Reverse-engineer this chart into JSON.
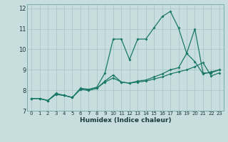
{
  "title": "",
  "xlabel": "Humidex (Indice chaleur)",
  "background_color": "#c8dede",
  "grid_color": "#a8c8c8",
  "line_color": "#1a7868",
  "xlim": [
    -0.5,
    23.5
  ],
  "ylim": [
    7,
    12.2
  ],
  "yticks": [
    7,
    8,
    9,
    10,
    11,
    12
  ],
  "xticks": [
    0,
    1,
    2,
    3,
    4,
    5,
    6,
    7,
    8,
    9,
    10,
    11,
    12,
    13,
    14,
    15,
    16,
    17,
    18,
    19,
    20,
    21,
    22,
    23
  ],
  "lines": [
    {
      "x": [
        0,
        1,
        2,
        3,
        4,
        5,
        6,
        7,
        8,
        9,
        10,
        11,
        12,
        13,
        14,
        15,
        16,
        17,
        18,
        19,
        20,
        21,
        22,
        23
      ],
      "y": [
        7.6,
        7.6,
        7.5,
        7.85,
        7.75,
        7.65,
        8.1,
        8.05,
        8.15,
        8.85,
        10.5,
        10.5,
        9.5,
        10.5,
        10.5,
        11.05,
        11.6,
        11.85,
        11.05,
        9.8,
        9.4,
        8.8,
        8.9,
        9.0
      ]
    },
    {
      "x": [
        0,
        1,
        2,
        3,
        4,
        5,
        6,
        7,
        8,
        9,
        10,
        11,
        12,
        13,
        14,
        15,
        16,
        17,
        18,
        19,
        20,
        21,
        22,
        23
      ],
      "y": [
        7.6,
        7.6,
        7.5,
        7.8,
        7.75,
        7.65,
        8.05,
        8.0,
        8.1,
        8.45,
        8.75,
        8.4,
        8.35,
        8.45,
        8.5,
        8.65,
        8.8,
        9.0,
        9.1,
        9.8,
        11.0,
        8.85,
        8.85,
        9.0
      ]
    },
    {
      "x": [
        0,
        1,
        2,
        3,
        4,
        5,
        6,
        7,
        8,
        9,
        10,
        11,
        12,
        13,
        14,
        15,
        16,
        17,
        18,
        19,
        20,
        21,
        22,
        23
      ],
      "y": [
        7.6,
        7.6,
        7.5,
        7.8,
        7.75,
        7.65,
        8.05,
        8.0,
        8.1,
        8.4,
        8.6,
        8.4,
        8.35,
        8.4,
        8.45,
        8.55,
        8.65,
        8.8,
        8.9,
        9.0,
        9.15,
        9.35,
        8.7,
        8.85
      ]
    }
  ]
}
